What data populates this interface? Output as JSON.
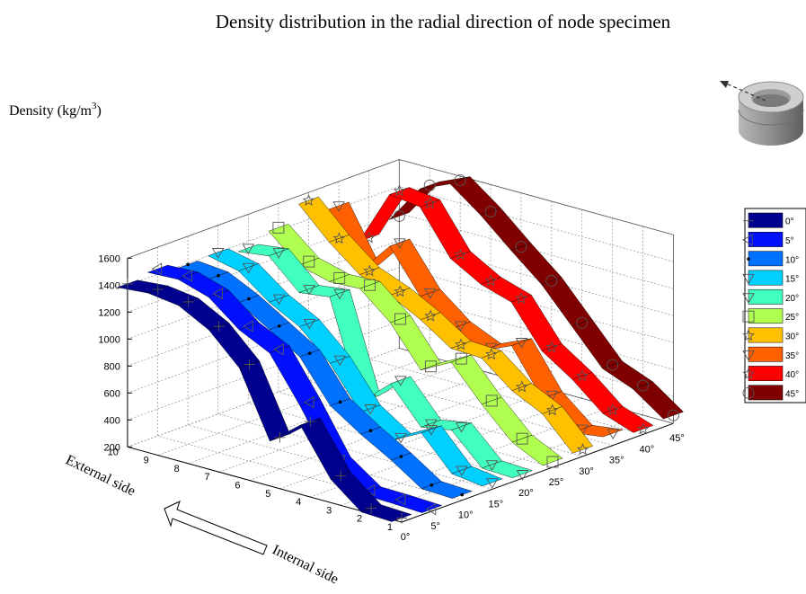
{
  "chart_data": {
    "type": "line",
    "title": "Density distribution in the radial direction of node specimen",
    "zlabel": "Density (kg/m",
    "zlabel_sup": "3",
    "zlabel_end": ")",
    "xlabel_external": "External side",
    "xlabel_internal": "Internal side",
    "zlim": [
      200,
      1600
    ],
    "zticks": [
      "200",
      "400",
      "600",
      "800",
      "1000",
      "1200",
      "1400",
      "1600"
    ],
    "positions": [
      "1",
      "2",
      "3",
      "4",
      "5",
      "6",
      "7",
      "8",
      "9",
      "10"
    ],
    "angle_ticks": [
      "0°",
      "5°",
      "10°",
      "15°",
      "20°",
      "25°",
      "30°",
      "35°",
      "40°",
      "45°"
    ],
    "grid": true,
    "legend_position": "right",
    "series": [
      {
        "name": "0°",
        "color": "#00008f",
        "marker": "plus",
        "values": [
          230,
          240,
          420,
          760,
          580,
          1060,
          1280,
          1400,
          1430,
          1410
        ]
      },
      {
        "name": "5°",
        "color": "#0010ff",
        "marker": "triangle-left",
        "values": [
          215,
          225,
          230,
          390,
          760,
          1090,
          1200,
          1380,
          1450,
          1440
        ]
      },
      {
        "name": "10°",
        "color": "#0070ff",
        "marker": "dot",
        "values": [
          240,
          250,
          400,
          530,
          680,
          980,
          1120,
          1260,
          1370,
          1390
        ]
      },
      {
        "name": "15°",
        "color": "#00d0ff",
        "marker": "triangle-down",
        "values": [
          250,
          280,
          520,
          400,
          550,
          850,
          1060,
          1180,
          1350,
          1400
        ]
      },
      {
        "name": "20°",
        "color": "#40ffbf",
        "marker": "triangle-down",
        "values": [
          230,
          240,
          460,
          420,
          680,
          480,
          1200,
          1170,
          1380,
          1350
        ]
      },
      {
        "name": "25°",
        "color": "#b0ff50",
        "marker": "square",
        "values": [
          240,
          350,
          570,
          820,
          700,
          990,
          1180,
          1170,
          1230,
          1420
        ]
      },
      {
        "name": "30°",
        "color": "#ffc000",
        "marker": "star",
        "values": [
          250,
          480,
          590,
          770,
          780,
          930,
          1050,
          1140,
          1320,
          1540
        ]
      },
      {
        "name": "35°",
        "color": "#ff6000",
        "marker": "triangle-down",
        "values": [
          290,
          260,
          450,
          780,
          680,
          780,
          960,
          1270,
          1020,
          1420
        ]
      },
      {
        "name": "40°",
        "color": "#ff0000",
        "marker": "star",
        "values": [
          240,
          320,
          510,
          660,
          960,
          1030,
          1160,
          1480,
          1510,
          1100
        ]
      },
      {
        "name": "45°",
        "color": "#800000",
        "marker": "circle",
        "values": [
          260,
          420,
          510,
          760,
          1010,
          1200,
          1400,
          1570,
          1470,
          1180
        ]
      }
    ]
  }
}
